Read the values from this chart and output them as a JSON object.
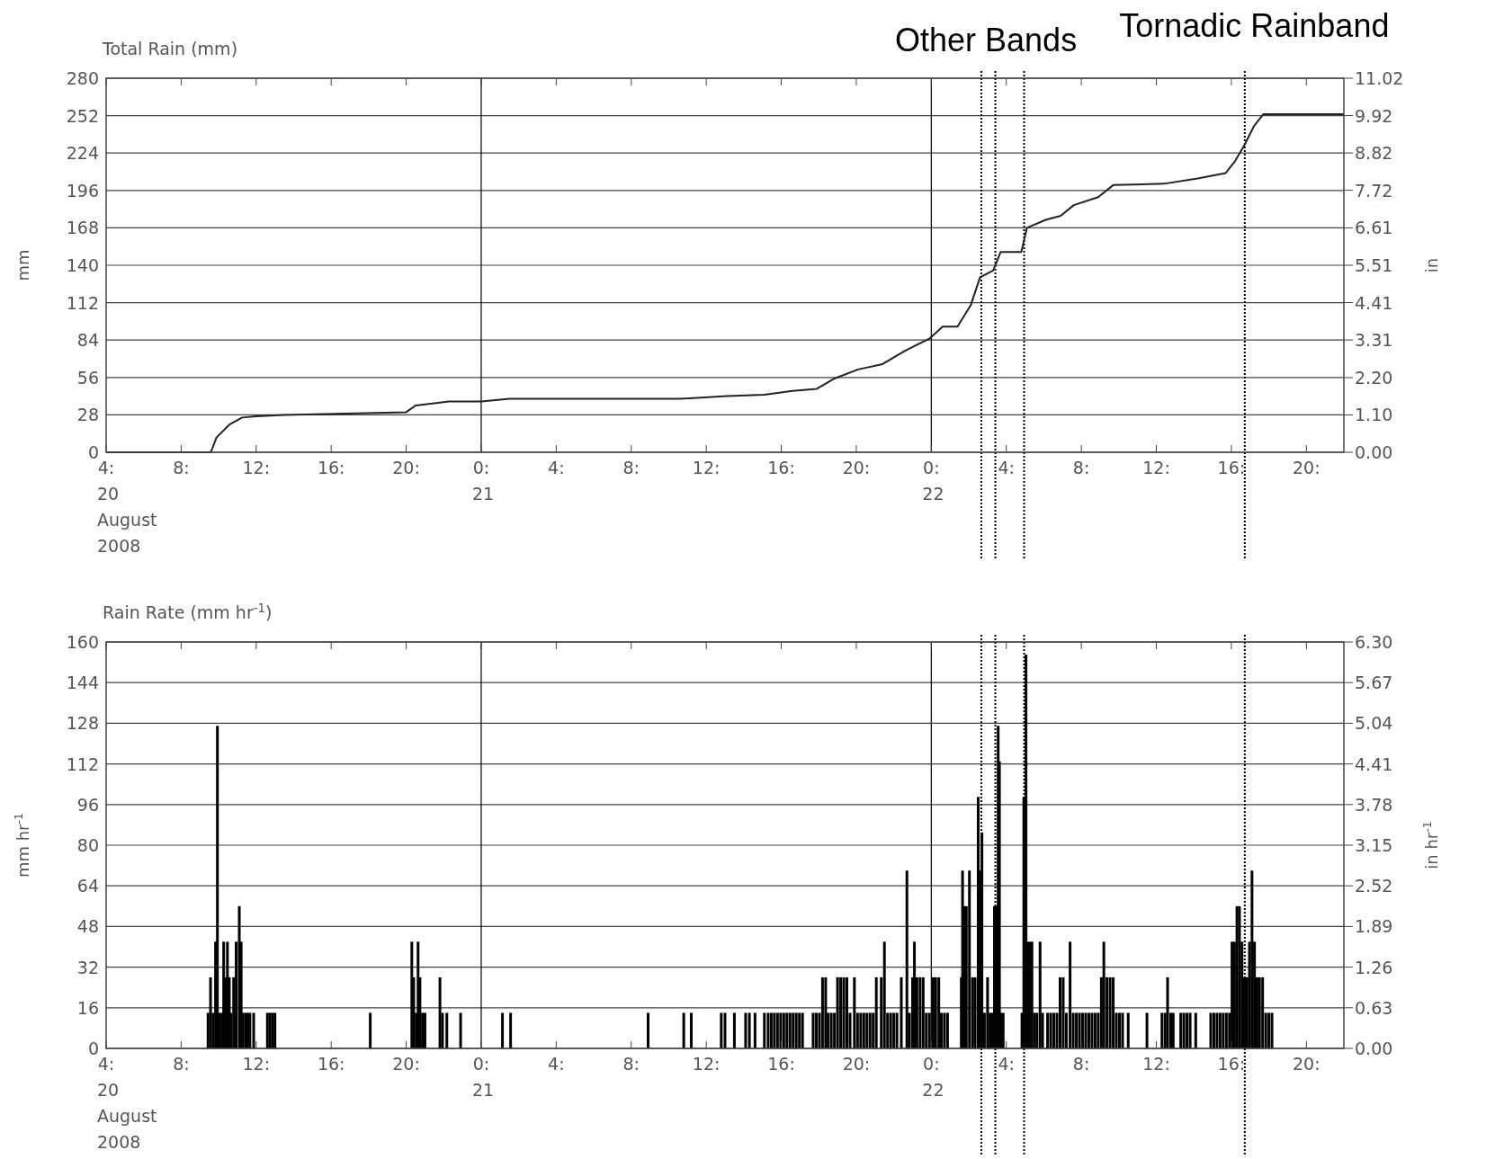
{
  "chart_data": [
    {
      "type": "line",
      "title": "Total Rain (mm)",
      "ylabel": "mm",
      "y2label": "in",
      "grid": "y",
      "marker": "none",
      "xlim": [
        "2008-08-20T04:00",
        "2008-08-22T22:00"
      ],
      "xticks": [
        {
          "value": "2008-08-20T04:00",
          "label": "4:\n20\nAugust\n2008"
        },
        {
          "value": "2008-08-20T08:00",
          "label": "8:"
        },
        {
          "value": "2008-08-20T12:00",
          "label": "12:"
        },
        {
          "value": "2008-08-20T16:00",
          "label": "16:"
        },
        {
          "value": "2008-08-20T20:00",
          "label": "20:"
        },
        {
          "value": "2008-08-21T00:00",
          "label": "0:\n21"
        },
        {
          "value": "2008-08-21T04:00",
          "label": "4:"
        },
        {
          "value": "2008-08-21T08:00",
          "label": "8:"
        },
        {
          "value": "2008-08-21T12:00",
          "label": "12:"
        },
        {
          "value": "2008-08-21T16:00",
          "label": "16:"
        },
        {
          "value": "2008-08-21T20:00",
          "label": "20:"
        },
        {
          "value": "2008-08-22T00:00",
          "label": "0:\n22"
        },
        {
          "value": "2008-08-22T04:00",
          "label": "4:"
        },
        {
          "value": "2008-08-22T08:00",
          "label": "8:"
        },
        {
          "value": "2008-08-22T12:00",
          "label": "12:"
        },
        {
          "value": "2008-08-22T16:00",
          "label": "16:"
        },
        {
          "value": "2008-08-22T20:00",
          "label": "20:"
        }
      ],
      "ylim": [
        0,
        280
      ],
      "yticks": [
        0,
        28,
        56,
        84,
        112,
        140,
        168,
        196,
        224,
        252,
        280
      ],
      "y2lim": [
        0,
        11.02
      ],
      "y2ticks": [
        {
          "value": 0,
          "label": "0.00"
        },
        {
          "value": 1.1,
          "label": "1.10"
        },
        {
          "value": 2.2,
          "label": "2.20"
        },
        {
          "value": 3.31,
          "label": "3.31"
        },
        {
          "value": 4.41,
          "label": "4.41"
        },
        {
          "value": 5.51,
          "label": "5.51"
        },
        {
          "value": 6.61,
          "label": "6.61"
        },
        {
          "value": 7.72,
          "label": "7.72"
        },
        {
          "value": 8.82,
          "label": "8.82"
        },
        {
          "value": 9.92,
          "label": "9.92"
        },
        {
          "value": 11.02,
          "label": "11.02"
        }
      ],
      "ref_lines": [
        {
          "axis": "x",
          "value": "2008-08-21T00:00",
          "line_style": "solid"
        },
        {
          "axis": "x",
          "value": "2008-08-22T00:00",
          "line_style": "solid"
        },
        {
          "axis": "x",
          "value": "2008-08-22T02:40",
          "line_style": "dotted"
        },
        {
          "axis": "x",
          "value": "2008-08-22T03:25",
          "line_style": "dotted",
          "label": "Other Bands"
        },
        {
          "axis": "x",
          "value": "2008-08-22T04:57",
          "line_style": "dotted"
        },
        {
          "axis": "x",
          "value": "2008-08-22T16:43",
          "line_style": "dotted",
          "label": "Tornadic Rainband"
        }
      ],
      "series": [
        {
          "color": "#222222",
          "x": [
            "2008-08-20T04:00",
            "2008-08-20T09:35",
            "2008-08-20T09:53",
            "2008-08-20T10:36",
            "2008-08-20T11:15",
            "2008-08-20T12:00",
            "2008-08-20T13:30",
            "2008-08-20T20:00",
            "2008-08-20T20:30",
            "2008-08-20T22:18",
            "2008-08-21T00:00",
            "2008-08-21T01:30",
            "2008-08-21T10:36",
            "2008-08-21T13:06",
            "2008-08-21T15:06",
            "2008-08-21T16:36",
            "2008-08-21T17:54",
            "2008-08-21T18:48",
            "2008-08-21T20:06",
            "2008-08-21T21:24",
            "2008-08-21T22:36",
            "2008-08-21T23:54",
            "2008-08-22T00:36",
            "2008-08-22T01:24",
            "2008-08-22T02:06",
            "2008-08-22T02:36",
            "2008-08-22T03:18",
            "2008-08-22T03:42",
            "2008-08-22T04:48",
            "2008-08-22T05:06",
            "2008-08-22T06:06",
            "2008-08-22T06:54",
            "2008-08-22T07:36",
            "2008-08-22T08:54",
            "2008-08-22T09:42",
            "2008-08-22T12:24",
            "2008-08-22T14:12",
            "2008-08-22T15:42",
            "2008-08-22T16:12",
            "2008-08-22T16:42",
            "2008-08-22T17:12",
            "2008-08-22T17:42",
            "2008-08-22T22:00"
          ],
          "values": [
            0,
            0,
            11,
            21,
            26,
            27,
            28,
            30,
            35,
            38,
            38,
            40,
            40,
            42,
            43,
            46,
            47.5,
            55,
            62,
            66,
            76,
            85,
            94,
            94,
            110,
            131,
            136,
            150,
            150,
            168,
            174,
            177,
            185,
            191,
            200,
            201,
            205,
            209,
            218,
            230,
            244,
            253,
            253
          ]
        }
      ]
    },
    {
      "type": "bar",
      "title": "Rain Rate (mm hr$^{-1}$)",
      "ylabel": "mm hr$^{-1}$",
      "y2label": "in hr$^{-1}$",
      "grid": "y",
      "xlim": [
        "2008-08-20T04:00",
        "2008-08-22T22:00"
      ],
      "xticks": [
        {
          "value": "2008-08-20T04:00",
          "label": "4:\n20\nAugust\n2008"
        },
        {
          "value": "2008-08-20T08:00",
          "label": "8:"
        },
        {
          "value": "2008-08-20T12:00",
          "label": "12:"
        },
        {
          "value": "2008-08-20T16:00",
          "label": "16:"
        },
        {
          "value": "2008-08-20T20:00",
          "label": "20:"
        },
        {
          "value": "2008-08-21T00:00",
          "label": "0:\n21"
        },
        {
          "value": "2008-08-21T04:00",
          "label": "4:"
        },
        {
          "value": "2008-08-21T08:00",
          "label": "8:"
        },
        {
          "value": "2008-08-21T12:00",
          "label": "12:"
        },
        {
          "value": "2008-08-21T16:00",
          "label": "16:"
        },
        {
          "value": "2008-08-21T20:00",
          "label": "20:"
        },
        {
          "value": "2008-08-22T00:00",
          "label": "0:\n22"
        },
        {
          "value": "2008-08-22T04:00",
          "label": "4:"
        },
        {
          "value": "2008-08-22T08:00",
          "label": "8:"
        },
        {
          "value": "2008-08-22T12:00",
          "label": "12:"
        },
        {
          "value": "2008-08-22T16:00",
          "label": "16:"
        },
        {
          "value": "2008-08-22T20:00",
          "label": "20:"
        }
      ],
      "ylim": [
        0,
        160
      ],
      "yticks": [
        0,
        16,
        32,
        48,
        64,
        80,
        96,
        112,
        128,
        144,
        160
      ],
      "y2lim": [
        0,
        6.3
      ],
      "y2ticks": [
        {
          "value": 0,
          "label": "0.00"
        },
        {
          "value": 0.63,
          "label": "0.63"
        },
        {
          "value": 1.26,
          "label": "1.26"
        },
        {
          "value": 1.89,
          "label": "1.89"
        },
        {
          "value": 2.52,
          "label": "2.52"
        },
        {
          "value": 3.15,
          "label": "3.15"
        },
        {
          "value": 3.78,
          "label": "3.78"
        },
        {
          "value": 4.41,
          "label": "4.41"
        },
        {
          "value": 5.04,
          "label": "5.04"
        },
        {
          "value": 5.67,
          "label": "5.67"
        },
        {
          "value": 6.3,
          "label": "6.30"
        }
      ],
      "ref_lines": [
        {
          "axis": "x",
          "value": "2008-08-21T00:00",
          "line_style": "solid"
        },
        {
          "axis": "x",
          "value": "2008-08-22T00:00",
          "line_style": "solid"
        },
        {
          "axis": "x",
          "value": "2008-08-22T02:40",
          "line_style": "dotted"
        },
        {
          "axis": "x",
          "value": "2008-08-22T03:25",
          "line_style": "dotted"
        },
        {
          "axis": "x",
          "value": "2008-08-22T04:57",
          "line_style": "dotted"
        },
        {
          "axis": "x",
          "value": "2008-08-22T16:43",
          "line_style": "dotted"
        }
      ],
      "series": [
        {
          "color": "#000000",
          "x": [
            "2008-08-20T09:26",
            "2008-08-20T09:34",
            "2008-08-20T09:42",
            "2008-08-20T09:50",
            "2008-08-20T09:56",
            "2008-08-20T10:02",
            "2008-08-20T10:10",
            "2008-08-20T10:16",
            "2008-08-20T10:22",
            "2008-08-20T10:28",
            "2008-08-20T10:34",
            "2008-08-20T10:40",
            "2008-08-20T10:48",
            "2008-08-20T10:56",
            "2008-08-20T11:06",
            "2008-08-20T11:12",
            "2008-08-20T11:18",
            "2008-08-20T11:26",
            "2008-08-20T11:33",
            "2008-08-20T11:40",
            "2008-08-20T11:52",
            "2008-08-20T12:36",
            "2008-08-20T12:44",
            "2008-08-20T12:52",
            "2008-08-20T13:00",
            "2008-08-20T18:05",
            "2008-08-20T20:18",
            "2008-08-20T20:24",
            "2008-08-20T20:32",
            "2008-08-20T20:38",
            "2008-08-20T20:44",
            "2008-08-20T20:52",
            "2008-08-20T21:00",
            "2008-08-20T21:48",
            "2008-08-20T21:56",
            "2008-08-20T22:10",
            "2008-08-20T22:54",
            "2008-08-21T01:08",
            "2008-08-21T01:34",
            "2008-08-21T08:54",
            "2008-08-21T10:48",
            "2008-08-21T11:12",
            "2008-08-21T12:48",
            "2008-08-21T13:00",
            "2008-08-21T13:30",
            "2008-08-21T14:06",
            "2008-08-21T14:18",
            "2008-08-21T14:36",
            "2008-08-21T15:06",
            "2008-08-21T15:18",
            "2008-08-21T15:28",
            "2008-08-21T15:38",
            "2008-08-21T15:48",
            "2008-08-21T15:58",
            "2008-08-21T16:08",
            "2008-08-21T16:18",
            "2008-08-21T16:28",
            "2008-08-21T16:38",
            "2008-08-21T16:48",
            "2008-08-21T16:58",
            "2008-08-21T17:08",
            "2008-08-21T17:42",
            "2008-08-21T17:52",
            "2008-08-21T18:02",
            "2008-08-21T18:12",
            "2008-08-21T18:22",
            "2008-08-21T18:30",
            "2008-08-21T18:40",
            "2008-08-21T18:50",
            "2008-08-21T19:00",
            "2008-08-21T19:10",
            "2008-08-21T19:20",
            "2008-08-21T19:30",
            "2008-08-21T19:40",
            "2008-08-21T19:54",
            "2008-08-21T20:04",
            "2008-08-21T20:14",
            "2008-08-21T20:24",
            "2008-08-21T20:34",
            "2008-08-21T20:44",
            "2008-08-21T20:54",
            "2008-08-21T21:04",
            "2008-08-21T21:20",
            "2008-08-21T21:30",
            "2008-08-21T21:40",
            "2008-08-21T21:50",
            "2008-08-21T22:00",
            "2008-08-21T22:10",
            "2008-08-21T22:24",
            "2008-08-21T22:42",
            "2008-08-21T22:50",
            "2008-08-21T23:00",
            "2008-08-21T23:06",
            "2008-08-21T23:14",
            "2008-08-21T23:24",
            "2008-08-21T23:34",
            "2008-08-21T23:44",
            "2008-08-21T23:54",
            "2008-08-22T00:06",
            "2008-08-22T00:14",
            "2008-08-22T00:24",
            "2008-08-22T00:32",
            "2008-08-22T00:42",
            "2008-08-22T00:52",
            "2008-08-22T01:36",
            "2008-08-22T01:40",
            "2008-08-22T01:46",
            "2008-08-22T01:52",
            "2008-08-22T02:02",
            "2008-08-22T02:12",
            "2008-08-22T02:20",
            "2008-08-22T02:30",
            "2008-08-22T02:36",
            "2008-08-22T02:42",
            "2008-08-22T02:50",
            "2008-08-22T03:00",
            "2008-08-22T03:08",
            "2008-08-22T03:16",
            "2008-08-22T03:22",
            "2008-08-22T03:28",
            "2008-08-22T03:34",
            "2008-08-22T03:38",
            "2008-08-22T03:42",
            "2008-08-22T03:50",
            "2008-08-22T04:50",
            "2008-08-22T04:56",
            "2008-08-22T05:03",
            "2008-08-22T05:08",
            "2008-08-22T05:14",
            "2008-08-22T05:22",
            "2008-08-22T05:30",
            "2008-08-22T05:38",
            "2008-08-22T05:48",
            "2008-08-22T05:56",
            "2008-08-22T06:12",
            "2008-08-22T06:22",
            "2008-08-22T06:32",
            "2008-08-22T06:42",
            "2008-08-22T06:52",
            "2008-08-22T07:02",
            "2008-08-22T07:12",
            "2008-08-22T07:24",
            "2008-08-22T07:34",
            "2008-08-22T07:44",
            "2008-08-22T07:54",
            "2008-08-22T08:04",
            "2008-08-22T08:14",
            "2008-08-22T08:24",
            "2008-08-22T08:34",
            "2008-08-22T08:44",
            "2008-08-22T08:54",
            "2008-08-22T09:04",
            "2008-08-22T09:12",
            "2008-08-22T09:22",
            "2008-08-22T09:32",
            "2008-08-22T09:42",
            "2008-08-22T09:52",
            "2008-08-22T10:02",
            "2008-08-22T10:12",
            "2008-08-22T10:30",
            "2008-08-22T11:30",
            "2008-08-22T12:18",
            "2008-08-22T12:28",
            "2008-08-22T12:36",
            "2008-08-22T12:46",
            "2008-08-22T12:54",
            "2008-08-22T13:18",
            "2008-08-22T13:28",
            "2008-08-22T13:38",
            "2008-08-22T13:48",
            "2008-08-22T14:06",
            "2008-08-22T14:54",
            "2008-08-22T15:04",
            "2008-08-22T15:14",
            "2008-08-22T15:24",
            "2008-08-22T15:34",
            "2008-08-22T15:44",
            "2008-08-22T15:54",
            "2008-08-22T16:02",
            "2008-08-22T16:10",
            "2008-08-22T16:18",
            "2008-08-22T16:26",
            "2008-08-22T16:34",
            "2008-08-22T16:42",
            "2008-08-22T16:50",
            "2008-08-22T16:58",
            "2008-08-22T17:06",
            "2008-08-22T17:14",
            "2008-08-22T17:22",
            "2008-08-22T17:30",
            "2008-08-22T17:40",
            "2008-08-22T17:50",
            "2008-08-22T18:00",
            "2008-08-22T18:10"
          ],
          "values": [
            14,
            28,
            14,
            42,
            127,
            14,
            14,
            42,
            28,
            42,
            28,
            14,
            28,
            42,
            56,
            42,
            14,
            14,
            14,
            14,
            14,
            14,
            14,
            14,
            14,
            14,
            42,
            28,
            14,
            42,
            28,
            14,
            14,
            28,
            14,
            14,
            14,
            14,
            14,
            14,
            14,
            14,
            14,
            14,
            14,
            14,
            14,
            14,
            14,
            14,
            14,
            14,
            14,
            14,
            14,
            14,
            14,
            14,
            14,
            14,
            14,
            14,
            14,
            14,
            28,
            28,
            14,
            14,
            14,
            28,
            28,
            28,
            28,
            14,
            28,
            14,
            14,
            14,
            14,
            14,
            14,
            28,
            28,
            42,
            14,
            14,
            14,
            14,
            28,
            70,
            14,
            28,
            42,
            28,
            28,
            28,
            14,
            14,
            28,
            28,
            28,
            14,
            14,
            14,
            28,
            70,
            56,
            56,
            70,
            28,
            28,
            99,
            70,
            85,
            14,
            28,
            14,
            14,
            56,
            56,
            127,
            113,
            14,
            14,
            14,
            99,
            155,
            42,
            42,
            42,
            14,
            14,
            42,
            14,
            14,
            14,
            14,
            14,
            28,
            28,
            14,
            42,
            14,
            14,
            14,
            14,
            14,
            14,
            14,
            14,
            14,
            28,
            42,
            28,
            28,
            28,
            14,
            14,
            14,
            14,
            14,
            14,
            14,
            28,
            14,
            14,
            14,
            14,
            14,
            14,
            14,
            14,
            14,
            14,
            14,
            14,
            14,
            14,
            42,
            42,
            56,
            56,
            42,
            28,
            28,
            42,
            70,
            42,
            28,
            28,
            28,
            14,
            14,
            14
          ]
        }
      ]
    }
  ]
}
